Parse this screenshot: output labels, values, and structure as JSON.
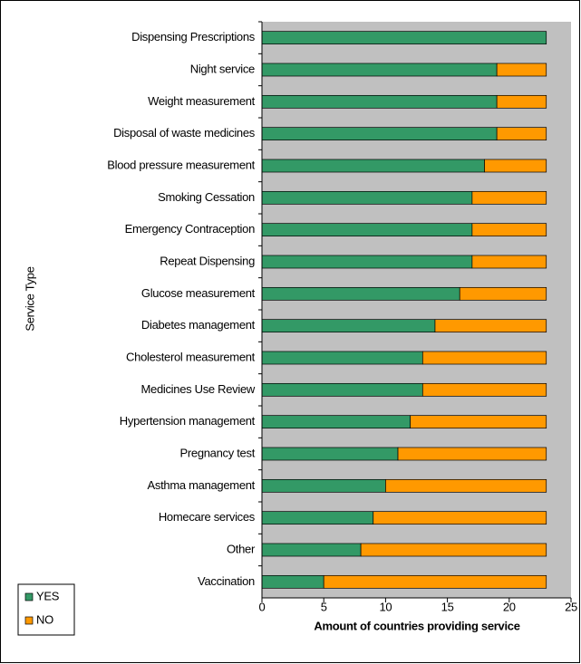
{
  "chart_data": {
    "type": "stacked_bar_horizontal",
    "y_label": "Service Type",
    "x_label": "Amount of countries providing service",
    "categories": [
      "Dispensing Prescriptions",
      "Night service",
      "Weight measurement",
      "Disposal of waste medicines",
      "Blood pressure measurement",
      "Smoking Cessation",
      "Emergency Contraception",
      "Repeat Dispensing",
      "Glucose measurement",
      "Diabetes management",
      "Cholesterol measurement",
      "Medicines Use Review",
      "Hypertension management",
      "Pregnancy test",
      "Asthma management",
      "Homecare services",
      "Other",
      "Vaccination"
    ],
    "series": [
      {
        "name": "YES",
        "color": "#339966",
        "values": [
          23,
          19,
          19,
          19,
          18,
          17,
          17,
          17,
          16,
          14,
          13,
          13,
          12,
          11,
          10,
          9,
          8,
          5
        ]
      },
      {
        "name": "NO",
        "color": "#ff9900",
        "values": [
          0,
          4,
          4,
          4,
          5,
          6,
          6,
          6,
          7,
          9,
          10,
          10,
          11,
          12,
          13,
          14,
          15,
          18
        ]
      }
    ],
    "xlim": [
      0,
      25
    ],
    "xticks": [
      0,
      5,
      10,
      15,
      20,
      25
    ],
    "plot_background": "#c0c0c0"
  }
}
